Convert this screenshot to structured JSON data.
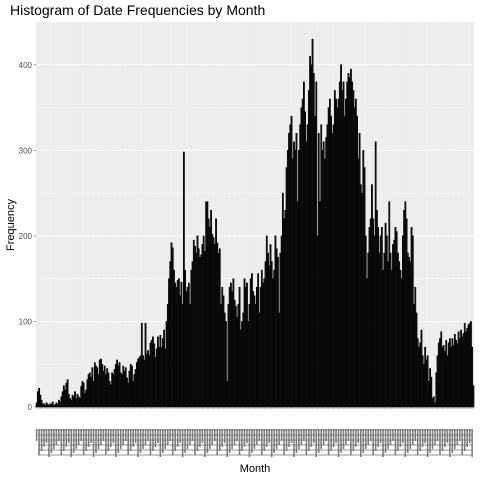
{
  "chart_data": {
    "type": "bar",
    "title": "Histogram of Date Frequencies by Month",
    "xlabel": "Month",
    "ylabel": "Frequency",
    "ylim": [
      0,
      450
    ],
    "yticks": [
      0,
      100,
      200,
      300,
      400
    ],
    "grid": true,
    "legend": "none",
    "x_tick_labels_legible": false,
    "values": [
      5,
      18,
      22,
      14,
      8,
      3,
      4,
      2,
      5,
      3,
      2,
      4,
      3,
      6,
      2,
      3,
      5,
      3,
      8,
      6,
      12,
      18,
      25,
      20,
      28,
      32,
      15,
      10,
      8,
      14,
      12,
      18,
      10,
      15,
      12,
      10,
      24,
      30,
      28,
      16,
      20,
      32,
      38,
      40,
      35,
      46,
      30,
      52,
      48,
      46,
      38,
      55,
      56,
      50,
      42,
      48,
      38,
      45,
      40,
      30,
      26,
      40,
      38,
      44,
      50,
      55,
      48,
      52,
      40,
      38,
      48,
      42,
      46,
      34,
      28,
      42,
      50,
      48,
      30,
      38,
      44,
      52,
      56,
      58,
      60,
      98,
      60,
      55,
      98,
      62,
      66,
      60,
      75,
      78,
      82,
      74,
      58,
      68,
      82,
      70,
      84,
      70,
      80,
      90,
      68,
      100,
      120,
      150,
      170,
      192,
      186,
      160,
      145,
      140,
      148,
      150,
      130,
      146,
      120,
      298,
      160,
      135,
      140,
      145,
      120,
      160,
      170,
      195,
      188,
      180,
      200,
      185,
      175,
      178,
      190,
      200,
      182,
      240,
      240,
      220,
      210,
      230,
      202,
      198,
      190,
      220,
      192,
      180,
      185,
      120,
      140,
      130,
      110,
      100,
      30,
      120,
      140,
      145,
      135,
      150,
      125,
      118,
      105,
      120,
      140,
      90,
      100,
      110,
      150,
      140,
      145,
      100,
      120,
      150,
      156,
      135,
      130,
      120,
      140,
      156,
      110,
      140,
      160,
      145,
      150,
      170,
      200,
      180,
      165,
      190,
      170,
      150,
      160,
      200,
      185,
      175,
      110,
      180,
      200,
      250,
      220,
      230,
      280,
      300,
      320,
      330,
      340,
      290,
      310,
      300,
      320,
      240,
      300,
      330,
      350,
      360,
      380,
      345,
      310,
      330,
      370,
      410,
      400,
      430,
      390,
      340,
      380,
      200,
      320,
      240,
      330,
      300,
      310,
      290,
      315,
      330,
      350,
      360,
      340,
      320,
      330,
      370,
      360,
      350,
      360,
      380,
      400,
      370,
      380,
      340,
      360,
      380,
      390,
      385,
      395,
      380,
      370,
      350,
      360,
      340,
      290,
      320,
      260,
      250,
      300,
      280,
      200,
      150,
      180,
      210,
      220,
      260,
      220,
      200,
      310,
      230,
      210,
      180,
      200,
      210,
      160,
      180,
      215,
      200,
      170,
      240,
      180,
      160,
      190,
      195,
      210,
      205,
      180,
      170,
      160,
      150,
      200,
      230,
      240,
      220,
      180,
      175,
      170,
      210,
      200,
      120,
      140,
      110,
      80,
      70,
      75,
      90,
      60,
      50,
      70,
      55,
      60,
      30,
      45,
      35,
      10,
      12,
      5,
      40,
      60,
      75,
      80,
      88,
      70,
      72,
      65,
      78,
      60,
      75,
      80,
      70,
      80,
      72,
      85,
      78,
      74,
      88,
      80,
      90,
      82,
      86,
      98,
      88,
      92,
      96,
      98,
      100,
      70,
      25
    ]
  }
}
